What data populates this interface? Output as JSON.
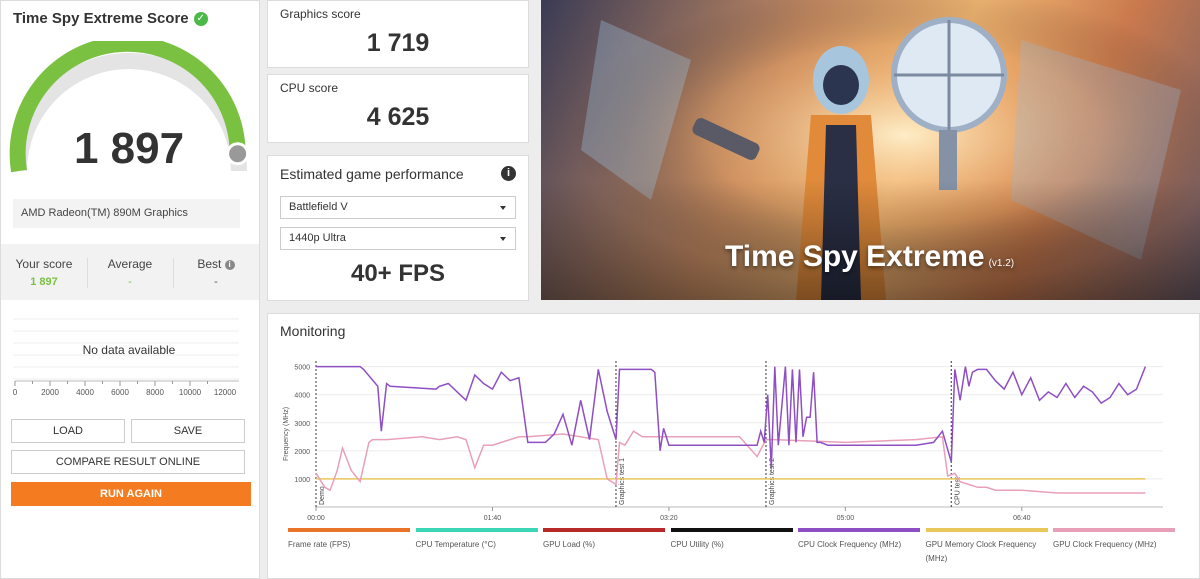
{
  "score_panel": {
    "title": "Time Spy Extreme Score",
    "score": "1 897",
    "score_fraction": 0.95,
    "gpu_name": "AMD Radeon(TM) 890M Graphics",
    "stats": [
      {
        "label": "Your score",
        "value": "1 897"
      },
      {
        "label": "Average",
        "value": "-"
      },
      {
        "label": "Best",
        "value": "-"
      }
    ],
    "histogram_ticks": [
      "0",
      "2000",
      "4000",
      "6000",
      "8000",
      "10000",
      "12000"
    ],
    "no_data": "No data available",
    "buttons": {
      "load": "LOAD",
      "save": "SAVE",
      "compare": "COMPARE RESULT ONLINE",
      "run_again": "RUN AGAIN"
    }
  },
  "graphics_score": {
    "label": "Graphics score",
    "value": "1 719"
  },
  "cpu_score": {
    "label": "CPU score",
    "value": "4 625"
  },
  "game_performance": {
    "title": "Estimated game performance",
    "game": "Battlefield V",
    "preset": "1440p Ultra",
    "fps": "40+ FPS"
  },
  "hero": {
    "title": "Time Spy Extreme",
    "version": "(v1.2)"
  },
  "monitoring": {
    "title": "Monitoring",
    "chart_data": {
      "type": "line",
      "ylabel": "Frequency (MHz)",
      "y_ticks": [
        "1000",
        "2000",
        "3000",
        "4000",
        "5000"
      ],
      "ylim": [
        0,
        5200
      ],
      "x_ticks": [
        "00:00",
        "01:40",
        "03:20",
        "05:00",
        "06:40"
      ],
      "xlim": [
        0,
        480
      ],
      "phase_labels": [
        "Demo",
        "Graphics test 1",
        "Graphics test 2",
        "CPU test"
      ],
      "phase_starts": [
        0,
        170,
        255,
        360
      ],
      "series": [
        {
          "name": "CPU Clock Frequency (MHz)",
          "color": "#8e4fc4",
          "x": [
            0,
            25,
            27,
            35,
            37,
            40,
            42,
            68,
            70,
            75,
            80,
            85,
            90,
            95,
            100,
            105,
            110,
            115,
            120,
            125,
            130,
            135,
            140,
            145,
            150,
            155,
            160,
            165,
            170,
            172,
            190,
            192,
            195,
            197,
            200,
            240,
            250,
            252,
            254,
            256,
            258,
            260,
            262,
            266,
            268,
            270,
            272,
            274,
            276,
            278,
            280,
            282,
            284,
            286,
            290,
            292,
            300,
            340,
            350,
            355,
            360,
            362,
            365,
            368,
            370,
            372,
            375,
            380,
            385,
            390,
            395,
            400,
            405,
            410,
            415,
            420,
            425,
            430,
            435,
            440,
            445,
            450,
            455,
            460,
            465,
            470
          ],
          "y": [
            5000,
            5000,
            4900,
            4300,
            2700,
            4400,
            4300,
            4200,
            4300,
            4400,
            4100,
            3800,
            4700,
            4400,
            4200,
            4800,
            4500,
            4600,
            2300,
            2300,
            2300,
            2600,
            3300,
            2200,
            3800,
            2400,
            4900,
            3400,
            2400,
            4900,
            4900,
            4800,
            2000,
            2800,
            2200,
            2200,
            2200,
            2700,
            2300,
            4000,
            1400,
            5000,
            2200,
            5000,
            2200,
            4900,
            2300,
            4900,
            2500,
            3200,
            3200,
            4800,
            2300,
            2300,
            2200,
            2200,
            2200,
            2200,
            2300,
            2700,
            1600,
            4900,
            3800,
            5000,
            4300,
            4800,
            4900,
            4900,
            4500,
            4200,
            4800,
            4000,
            4600,
            3800,
            4100,
            3900,
            4400,
            3900,
            4300,
            4100,
            3700,
            3900,
            4400,
            4000,
            4200,
            5000
          ]
        },
        {
          "name": "GPU Clock Frequency (MHz)",
          "color": "#e8a0b8",
          "x": [
            0,
            5,
            8,
            12,
            15,
            20,
            25,
            30,
            32,
            35,
            40,
            60,
            70,
            80,
            85,
            90,
            95,
            100,
            105,
            110,
            115,
            120,
            140,
            160,
            165,
            170,
            172,
            175,
            180,
            185,
            190,
            195,
            200,
            240,
            250,
            255,
            260,
            300,
            340,
            355,
            358,
            362,
            365,
            370,
            375,
            380,
            385,
            400,
            420,
            470
          ],
          "y": [
            1200,
            700,
            600,
            1300,
            2100,
            1300,
            900,
            2300,
            2400,
            2400,
            2400,
            2500,
            2400,
            2500,
            2400,
            1400,
            2200,
            2200,
            2300,
            2400,
            2500,
            2500,
            2600,
            2400,
            1000,
            800,
            2300,
            2200,
            2700,
            2500,
            2500,
            2500,
            2500,
            2500,
            1800,
            2400,
            2400,
            2300,
            2400,
            2500,
            1100,
            1200,
            900,
            800,
            700,
            700,
            600,
            600,
            500,
            500
          ]
        },
        {
          "name": "GPU Memory Clock Frequency (MHz)",
          "color": "#e8c85a",
          "x": [
            0,
            470
          ],
          "y": [
            1000,
            1000
          ]
        }
      ]
    },
    "legend": [
      {
        "name": "Frame rate (FPS)",
        "color": "#e8742a"
      },
      {
        "name": "CPU Temperature (°C)",
        "color": "#3ad6b6"
      },
      {
        "name": "GPU Load (%)",
        "color": "#b82a2a"
      },
      {
        "name": "CPU Utility (%)",
        "color": "#111111"
      },
      {
        "name": "CPU Clock Frequency (MHz)",
        "color": "#8e4fc4"
      },
      {
        "name": "GPU Memory Clock Frequency (MHz)",
        "color": "#e8c85a"
      },
      {
        "name": "GPU Clock Frequency (MHz)",
        "color": "#e8a0b8"
      }
    ]
  }
}
